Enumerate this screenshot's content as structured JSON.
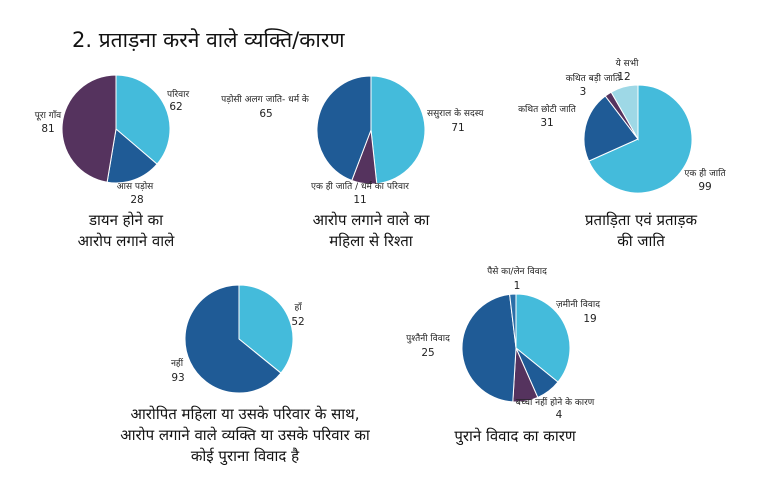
{
  "title": "2. प्रताड़ना करने वाले व्यक्ति/कारण",
  "colors": {
    "light_blue": "#44BBDB",
    "dark_blue": "#1F5B96",
    "purple": "#55335E",
    "pale_blue": "#9ED8E6"
  },
  "chart_data": [
    {
      "type": "pie",
      "title": "डायन होने का आरोप लगाने वाले",
      "title_lines": [
        "डायन होने का",
        "आरोप लगाने वाले"
      ],
      "slices": [
        {
          "label": "परिवार",
          "value": 62,
          "color": "#44BBDB"
        },
        {
          "label": "आस पड़ोस",
          "value": 28,
          "color": "#1F5B96"
        },
        {
          "label": "पूरा गाँव",
          "value": 81,
          "color": "#55335E"
        }
      ]
    },
    {
      "type": "pie",
      "title": "आरोप लगाने वाले का महिला से रिश्ता",
      "title_lines": [
        "आरोप लगाने वाले का",
        "महिला से रिश्ता"
      ],
      "slices": [
        {
          "label": "ससुराल के सदस्य",
          "value": 71,
          "color": "#44BBDB"
        },
        {
          "label": "एक ही जाति / धर्म का परिवार",
          "value": 11,
          "color": "#55335E"
        },
        {
          "label": "पड़ोसी अलग जाति- धर्म के",
          "value": 65,
          "color": "#1F5B96"
        }
      ]
    },
    {
      "type": "pie",
      "title": "प्रताड़िता एवं प्रताड़क की जाति",
      "title_lines": [
        "प्रताड़िता एवं प्रताड़क",
        "की जाति"
      ],
      "slices": [
        {
          "label": "एक ही जाति",
          "value": 99,
          "color": "#44BBDB"
        },
        {
          "label": "कथित छोटी जाति",
          "value": 31,
          "color": "#1F5B96"
        },
        {
          "label": "कथित बड़ी जाति",
          "value": 3,
          "color": "#55335E"
        },
        {
          "label": "ये सभी",
          "value": 12,
          "color": "#9ED8E6"
        }
      ]
    },
    {
      "type": "pie",
      "title": "आरोपित महिला या उसके परिवार के साथ, आरोप लगाने वाले व्यक्ति या उसके परिवार का कोई पुराना विवाद है",
      "title_lines": [
        "आरोपित महिला या उसके परिवार के साथ,",
        "आरोप लगाने वाले व्यक्ति या उसके परिवार का",
        "कोई पुराना विवाद है"
      ],
      "slices": [
        {
          "label": "हाँ",
          "value": 52,
          "color": "#44BBDB"
        },
        {
          "label": "नहीं",
          "value": 93,
          "color": "#1F5B96"
        }
      ]
    },
    {
      "type": "pie",
      "title": "पुराने विवाद का कारण",
      "title_lines": [
        "पुराने विवाद का कारण"
      ],
      "slices": [
        {
          "label": "ज़मीनी विवाद",
          "value": 19,
          "color": "#44BBDB"
        },
        {
          "label": "",
          "value": 4,
          "color": "#1F5B96"
        },
        {
          "label": "बच्चा नहीं होने के कारण",
          "value": 4,
          "color": "#55335E"
        },
        {
          "label": "पुश्तैनी विवाद",
          "value": 25,
          "color": "#1F5B96"
        },
        {
          "label": "पैसे का/लेन विवाद",
          "value": 1,
          "color": "#2A6FA8"
        }
      ]
    }
  ]
}
